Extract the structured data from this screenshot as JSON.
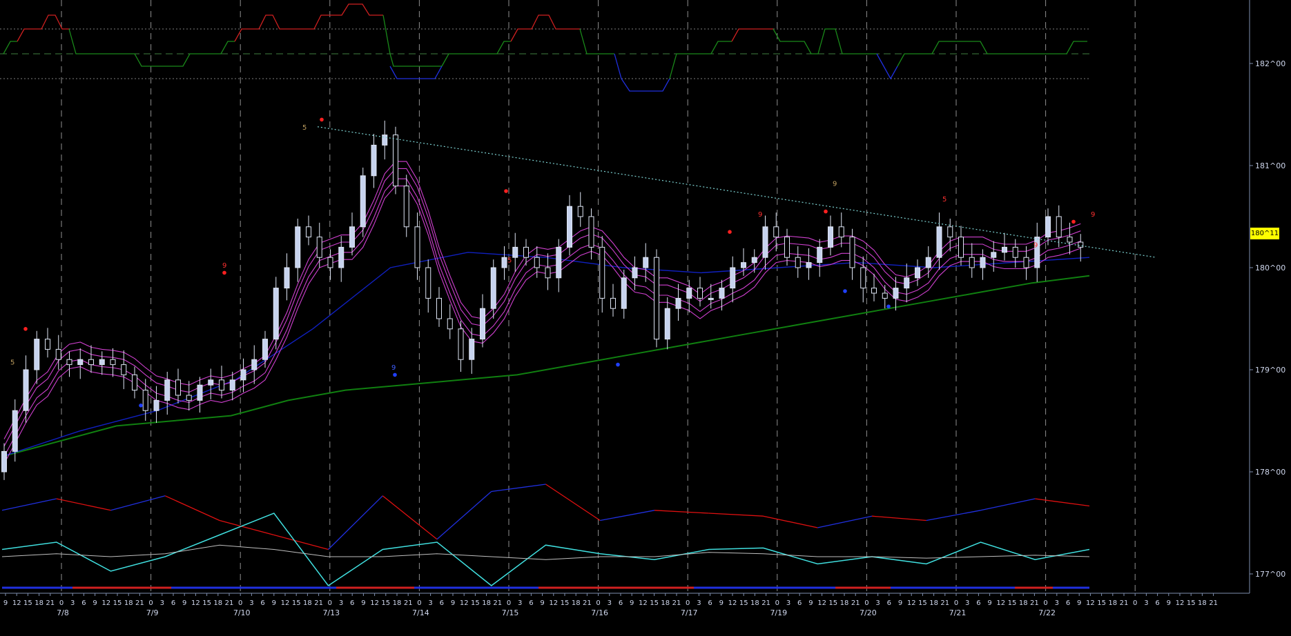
{
  "chart_data": {
    "type": "candlestick",
    "title": "",
    "price_axis": {
      "ticks": [
        "182^00",
        "181^00",
        "180^00",
        "179^00",
        "178^00",
        "177^00"
      ],
      "current_price_label": "180^11"
    },
    "time_axis": {
      "hour_labels": [
        "9",
        "12",
        "15",
        "18",
        "21",
        "0",
        "3",
        "6",
        "9",
        "12",
        "15",
        "18",
        "21",
        "0",
        "3",
        "6",
        "9",
        "12",
        "15",
        "18",
        "21",
        "0",
        "3",
        "6",
        "9",
        "12",
        "15",
        "18",
        "21",
        "0",
        "3",
        "6",
        "9",
        "12",
        "15",
        "18",
        "21",
        "0",
        "3",
        "6",
        "9",
        "12",
        "15",
        "18",
        "21",
        "0",
        "3",
        "6",
        "9",
        "12",
        "15",
        "18",
        "21",
        "0",
        "3",
        "6",
        "9",
        "12",
        "15",
        "18",
        "21",
        "0",
        "3",
        "6",
        "9",
        "12",
        "15",
        "18",
        "21",
        "0",
        "3",
        "6",
        "9",
        "12",
        "15",
        "18",
        "21",
        "0",
        "3",
        "6",
        "9",
        "12",
        "15",
        "18",
        "21",
        "0",
        "3",
        "6",
        "9",
        "12",
        "15",
        "18",
        "21",
        "0",
        "3",
        "6",
        "9",
        "12",
        "15",
        "18",
        "21",
        "0",
        "3",
        "6",
        "9",
        "12",
        "15",
        "18",
        "21"
      ],
      "date_labels": [
        "7/8",
        "7/9",
        "7/10",
        "7/13",
        "7/14",
        "7/15",
        "7/16",
        "7/17",
        "7/19",
        "7/20",
        "7/21",
        "7/22"
      ]
    },
    "series": [
      {
        "name": "price",
        "values": [
          178.2,
          178.6,
          179.0,
          179.3,
          179.2,
          179.1,
          179.05,
          179.1,
          179.05,
          179.1,
          179.05,
          178.95,
          178.8,
          178.6,
          178.7,
          178.9,
          178.75,
          178.7,
          178.85,
          178.9,
          178.8,
          178.9,
          179.0,
          179.1,
          179.3,
          179.8,
          180.0,
          180.4,
          180.3,
          180.1,
          180.0,
          180.2,
          180.4,
          180.9,
          181.2,
          181.3,
          180.8,
          180.4,
          180.0,
          179.7,
          179.5,
          179.4,
          179.1,
          179.3,
          179.6,
          180.0,
          180.1,
          180.2,
          180.1,
          180.0,
          179.9,
          180.2,
          180.6,
          180.5,
          180.2,
          179.7,
          179.6,
          179.9,
          180.0,
          180.1,
          179.3,
          179.6,
          179.7,
          179.8,
          179.7,
          179.7,
          179.8,
          180.0,
          180.05,
          180.1,
          180.4,
          180.3,
          180.1,
          180.0,
          180.05,
          180.2,
          180.4,
          180.3,
          180.0,
          179.8,
          179.75,
          179.7,
          179.8,
          179.9,
          180.0,
          180.1,
          180.4,
          180.3,
          180.1,
          180.0,
          180.1,
          180.15,
          180.2,
          180.1,
          180.0,
          180.3,
          180.5,
          180.3,
          180.25,
          180.2
        ]
      },
      {
        "name": "slow_ma",
        "values": [
          178.15,
          178.3,
          178.45,
          178.5,
          178.55,
          178.7,
          178.8,
          178.85,
          178.9,
          178.95,
          179.05,
          179.15,
          179.25,
          179.35,
          179.45,
          179.55,
          179.65,
          179.75,
          179.85,
          179.92
        ]
      },
      {
        "name": "mid_ma",
        "values": [
          178.15,
          178.4,
          178.6,
          178.9,
          179.4,
          180.0,
          180.15,
          180.1,
          180.0,
          179.95,
          180.0,
          180.05,
          180.0,
          180.05,
          180.1
        ]
      },
      {
        "name": "oscillator_red_blue",
        "values": [
          0.62,
          0.7,
          0.62,
          0.72,
          0.55,
          0.45,
          0.35,
          0.72,
          0.42,
          0.75,
          0.8,
          0.55,
          0.62,
          0.6,
          0.58,
          0.5,
          0.58,
          0.55,
          0.62,
          0.7,
          0.65
        ]
      },
      {
        "name": "oscillator_cyan",
        "values": [
          0.35,
          0.4,
          0.2,
          0.3,
          0.45,
          0.6,
          0.1,
          0.35,
          0.4,
          0.1,
          0.38,
          0.32,
          0.28,
          0.35,
          0.36,
          0.25,
          0.3,
          0.25,
          0.4,
          0.28,
          0.35
        ]
      },
      {
        "name": "oscillator_signal",
        "values": [
          0.3,
          0.32,
          0.3,
          0.32,
          0.38,
          0.35,
          0.3,
          0.3,
          0.32,
          0.3,
          0.28,
          0.3,
          0.3,
          0.33,
          0.32,
          0.3,
          0.3,
          0.29,
          0.3,
          0.31,
          0.3
        ]
      }
    ],
    "annotations": [
      "5",
      "9",
      "5",
      "9",
      "9",
      "9",
      "5",
      "9",
      "9",
      "5"
    ],
    "grid": "vertical dashed at day boundaries",
    "colors": {
      "background": "#000000",
      "bull_candle": "#c7d3ee",
      "bear_candle": "#ffffff",
      "envelope": "#d040d0",
      "mid_ma": "#1020c0",
      "slow_ma": "#108010",
      "trendline": "#7fd5d5",
      "osc_red": "#e01010",
      "osc_blue": "#2030e0",
      "osc_cyan": "#40e0e0",
      "osc_signal": "#c0c0c0",
      "axis_text": "#d0d8ee",
      "price_tag": "#ffff00"
    }
  }
}
